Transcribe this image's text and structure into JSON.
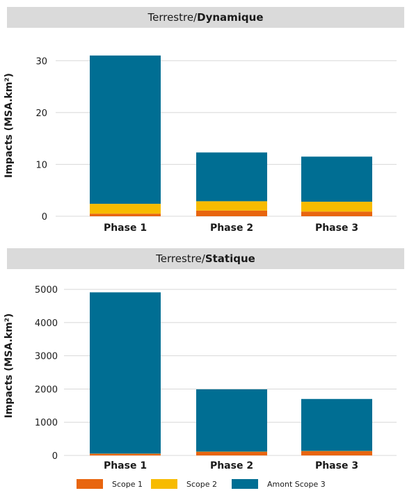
{
  "colors": {
    "scope1": "#e8650f",
    "scope2": "#f7bb00",
    "amont_scope3": "#006e93",
    "grid": "#d8d8d8",
    "header_bg": "#dadada"
  },
  "chart_data": [
    {
      "type": "bar",
      "stacked": true,
      "title": {
        "prefix": "Terrestre/",
        "emphasis": "Dynamique"
      },
      "ylabel": "Impacts (MSA.km²)",
      "categories": [
        "Phase 1",
        "Phase 2",
        "Phase 3"
      ],
      "ylim": [
        0,
        35
      ],
      "yticks": [
        0,
        10,
        20,
        30
      ],
      "series": [
        {
          "name": "Scope 1",
          "values": [
            0.5,
            1.1,
            0.9
          ]
        },
        {
          "name": "Scope 2",
          "values": [
            1.9,
            1.8,
            1.9
          ]
        },
        {
          "name": "Amont Scope 3",
          "values": [
            28.6,
            9.4,
            8.7
          ]
        }
      ]
    },
    {
      "type": "bar",
      "stacked": true,
      "title": {
        "prefix": "Terrestre/",
        "emphasis": "Statique"
      },
      "ylabel": "Impacts (MSA.km²)",
      "categories": [
        "Phase 1",
        "Phase 2",
        "Phase 3"
      ],
      "ylim": [
        0,
        5400
      ],
      "yticks": [
        0,
        1000,
        2000,
        3000,
        4000,
        5000
      ],
      "series": [
        {
          "name": "Scope 1",
          "values": [
            50,
            110,
            130
          ]
        },
        {
          "name": "Scope 2",
          "values": [
            5,
            5,
            5
          ]
        },
        {
          "name": "Amont Scope 3",
          "values": [
            4855,
            1875,
            1565
          ]
        }
      ]
    }
  ],
  "legend": [
    "Scope 1",
    "Scope 2",
    "Amont Scope 3"
  ]
}
